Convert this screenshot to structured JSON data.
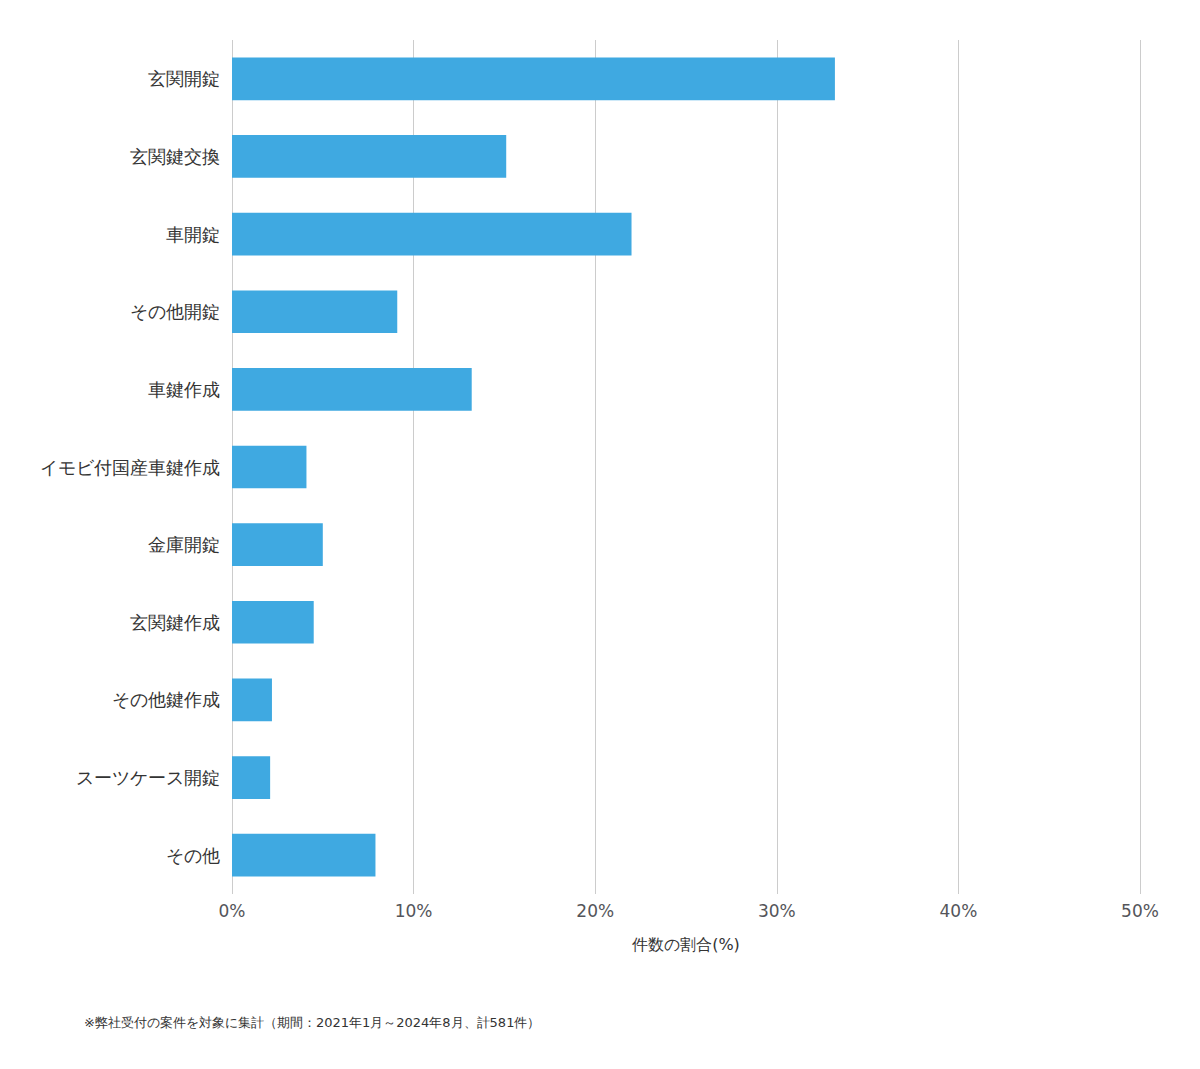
{
  "chart_data": {
    "type": "bar",
    "orientation": "horizontal",
    "categories": [
      "その他",
      "スーツケース開錠",
      "その他鍵作成",
      "玄関鍵作成",
      "金庫開錠",
      "イモビ付国産車鍵作成",
      "車鍵作成",
      "その他開錠",
      "車開錠",
      "玄関鍵交換",
      "玄関開錠"
    ],
    "values": [
      7.9,
      2.1,
      2.2,
      4.5,
      5.0,
      4.1,
      13.2,
      9.1,
      22.0,
      15.1,
      33.2
    ],
    "color": "#3FA9E1",
    "xlabel": "件数の割合(%)",
    "xlim": [
      0,
      50
    ],
    "xticks": [
      {
        "value": 0,
        "label": "0%"
      },
      {
        "value": 10,
        "label": "10%"
      },
      {
        "value": 20,
        "label": "20%"
      },
      {
        "value": 30,
        "label": "30%"
      },
      {
        "value": 40,
        "label": "40%"
      },
      {
        "value": 50,
        "label": "50%"
      }
    ],
    "grid": true,
    "annotations": [
      "※弊社受付の案件を対象に集計（期間：2021年1月～2024年8月、計581件）"
    ]
  }
}
